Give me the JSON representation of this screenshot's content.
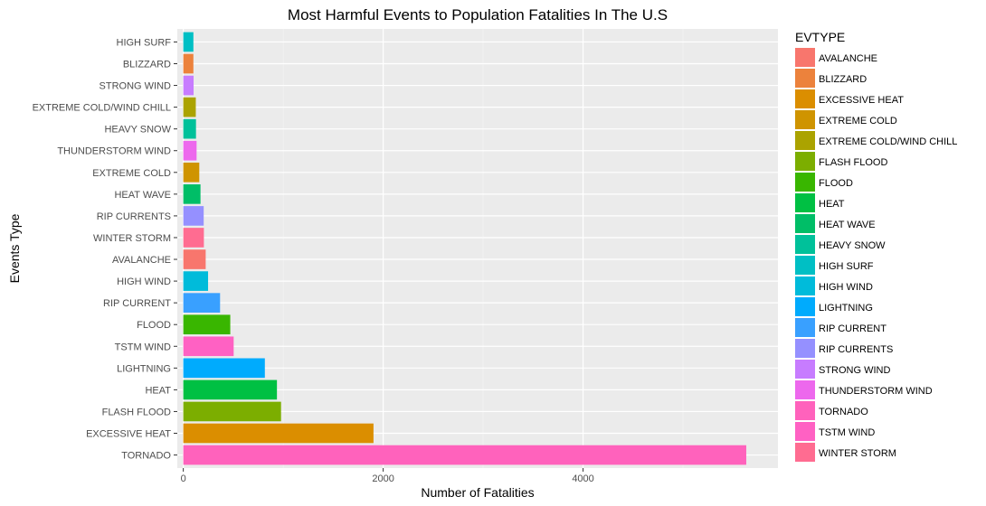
{
  "chart_data": {
    "type": "bar",
    "orientation": "horizontal",
    "title": "Most Harmful Events to Population Fatalities In The U.S",
    "xlabel": "Number of Fatalities",
    "ylabel": "Events Type",
    "xlim": [
      -60,
      5950
    ],
    "x_ticks": [
      0,
      2000,
      4000
    ],
    "x_tick_labels": [
      "0",
      "2000",
      "4000"
    ],
    "grid": true,
    "legend_position": "right",
    "categories": [
      "HIGH SURF",
      "BLIZZARD",
      "STRONG WIND",
      "EXTREME COLD/WIND CHILL",
      "HEAVY SNOW",
      "THUNDERSTORM WIND",
      "EXTREME COLD",
      "HEAT WAVE",
      "RIP CURRENTS",
      "WINTER STORM",
      "AVALANCHE",
      "HIGH WIND",
      "RIP CURRENT",
      "FLOOD",
      "TSTM WIND",
      "LIGHTNING",
      "HEAT",
      "FLASH FLOOD",
      "EXCESSIVE HEAT",
      "TORNADO"
    ],
    "values": [
      101,
      101,
      103,
      125,
      127,
      133,
      160,
      172,
      204,
      206,
      224,
      248,
      368,
      470,
      504,
      816,
      937,
      978,
      1903,
      5633
    ],
    "colors": [
      "#00BFC4",
      "#EC823C",
      "#C77CFF",
      "#ABA300",
      "#00C19A",
      "#ED68ED",
      "#CF9400",
      "#00BE67",
      "#9590FF",
      "#FF6C91",
      "#F8766D",
      "#00BBDA",
      "#39A0FF",
      "#39B600",
      "#FF61C3",
      "#00ABFD",
      "#00C043",
      "#7CAE00",
      "#DB8E00",
      "#FF62BC"
    ],
    "legend": {
      "title": "EVTYPE",
      "entries": [
        {
          "label": "AVALANCHE",
          "color": "#F8766D"
        },
        {
          "label": "BLIZZARD",
          "color": "#EC823C"
        },
        {
          "label": "EXCESSIVE HEAT",
          "color": "#DB8E00"
        },
        {
          "label": "EXTREME COLD",
          "color": "#CF9400"
        },
        {
          "label": "EXTREME COLD/WIND CHILL",
          "color": "#ABA300"
        },
        {
          "label": "FLASH FLOOD",
          "color": "#7CAE00"
        },
        {
          "label": "FLOOD",
          "color": "#39B600"
        },
        {
          "label": "HEAT",
          "color": "#00C043"
        },
        {
          "label": "HEAT WAVE",
          "color": "#00BE67"
        },
        {
          "label": "HEAVY SNOW",
          "color": "#00C19A"
        },
        {
          "label": "HIGH SURF",
          "color": "#00BFC4"
        },
        {
          "label": "HIGH WIND",
          "color": "#00BBDA"
        },
        {
          "label": "LIGHTNING",
          "color": "#00ABFD"
        },
        {
          "label": "RIP CURRENT",
          "color": "#39A0FF"
        },
        {
          "label": "RIP CURRENTS",
          "color": "#9590FF"
        },
        {
          "label": "STRONG WIND",
          "color": "#C77CFF"
        },
        {
          "label": "THUNDERSTORM WIND",
          "color": "#ED68ED"
        },
        {
          "label": "TORNADO",
          "color": "#FF62BC"
        },
        {
          "label": "TSTM WIND",
          "color": "#FF61C3"
        },
        {
          "label": "WINTER STORM",
          "color": "#FF6C91"
        }
      ]
    }
  }
}
